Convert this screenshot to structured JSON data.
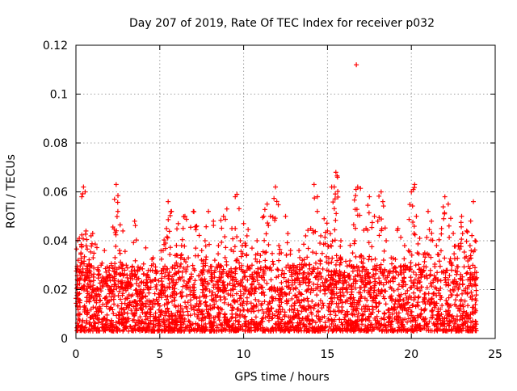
{
  "chart_data": {
    "type": "scatter",
    "title": "Day 207 of 2019, Rate Of TEC Index for receiver p032",
    "xlabel": "GPS time / hours",
    "ylabel": "ROTI / TECUs",
    "xlim": [
      0,
      25
    ],
    "ylim": [
      0,
      0.12
    ],
    "xticks": [
      0,
      5,
      10,
      15,
      20,
      25
    ],
    "yticks": [
      0,
      0.02,
      0.04,
      0.06,
      0.08,
      0.1,
      0.12
    ],
    "xtick_labels": [
      "0",
      "5",
      "10",
      "15",
      "20",
      "25"
    ],
    "ytick_labels": [
      "0",
      "0.02",
      "0.04",
      "0.06",
      "0.08",
      "0.1",
      "0.12"
    ],
    "grid": true,
    "marker": "+",
    "color": "#ff0000",
    "series": [
      {
        "name": "ROTI",
        "points": [
          [
            0.1,
            0.013
          ],
          [
            0.2,
            0.041
          ],
          [
            0.3,
            0.035
          ],
          [
            0.35,
            0.058
          ],
          [
            0.45,
            0.062
          ],
          [
            0.55,
            0.06
          ],
          [
            0.6,
            0.044
          ],
          [
            0.7,
            0.028
          ],
          [
            0.8,
            0.015
          ],
          [
            0.9,
            0.042
          ],
          [
            1.0,
            0.043
          ],
          [
            1.1,
            0.02
          ],
          [
            1.3,
            0.012
          ],
          [
            1.5,
            0.03
          ],
          [
            1.7,
            0.036
          ],
          [
            1.9,
            0.025
          ],
          [
            2.1,
            0.017
          ],
          [
            2.3,
            0.057
          ],
          [
            2.4,
            0.063
          ],
          [
            2.5,
            0.052
          ],
          [
            2.6,
            0.036
          ],
          [
            2.8,
            0.044
          ],
          [
            3.0,
            0.03
          ],
          [
            3.2,
            0.022
          ],
          [
            3.5,
            0.048
          ],
          [
            3.7,
            0.018
          ],
          [
            4.0,
            0.014
          ],
          [
            4.3,
            0.025
          ],
          [
            4.6,
            0.033
          ],
          [
            5.0,
            0.018
          ],
          [
            5.2,
            0.036
          ],
          [
            5.4,
            0.045
          ],
          [
            5.5,
            0.056
          ],
          [
            5.7,
            0.052
          ],
          [
            5.9,
            0.03
          ],
          [
            6.1,
            0.047
          ],
          [
            6.3,
            0.038
          ],
          [
            6.5,
            0.05
          ],
          [
            6.7,
            0.033
          ],
          [
            7.0,
            0.052
          ],
          [
            7.2,
            0.046
          ],
          [
            7.5,
            0.036
          ],
          [
            7.7,
            0.04
          ],
          [
            7.9,
            0.052
          ],
          [
            8.2,
            0.048
          ],
          [
            8.5,
            0.038
          ],
          [
            8.8,
            0.05
          ],
          [
            9.0,
            0.053
          ],
          [
            9.3,
            0.045
          ],
          [
            9.5,
            0.058
          ],
          [
            9.6,
            0.059
          ],
          [
            9.8,
            0.04
          ],
          [
            10.0,
            0.047
          ],
          [
            10.2,
            0.042
          ],
          [
            10.5,
            0.03
          ],
          [
            10.8,
            0.04
          ],
          [
            11.0,
            0.034
          ],
          [
            11.2,
            0.05
          ],
          [
            11.4,
            0.055
          ],
          [
            11.6,
            0.05
          ],
          [
            11.9,
            0.062
          ],
          [
            12.1,
            0.038
          ],
          [
            12.5,
            0.05
          ],
          [
            12.8,
            0.036
          ],
          [
            13.0,
            0.028
          ],
          [
            13.3,
            0.036
          ],
          [
            13.5,
            0.032
          ],
          [
            13.7,
            0.042
          ],
          [
            14.0,
            0.045
          ],
          [
            14.2,
            0.063
          ],
          [
            14.4,
            0.058
          ],
          [
            14.6,
            0.042
          ],
          [
            14.8,
            0.049
          ],
          [
            15.0,
            0.044
          ],
          [
            15.2,
            0.038
          ],
          [
            15.4,
            0.062
          ],
          [
            15.5,
            0.068
          ],
          [
            15.6,
            0.066
          ],
          [
            15.8,
            0.04
          ],
          [
            16.0,
            0.025
          ],
          [
            16.3,
            0.03
          ],
          [
            16.5,
            0.035
          ],
          [
            16.7,
            0.061
          ],
          [
            16.72,
            0.112
          ],
          [
            16.8,
            0.062
          ],
          [
            17.0,
            0.034
          ],
          [
            17.3,
            0.045
          ],
          [
            17.5,
            0.058
          ],
          [
            17.8,
            0.05
          ],
          [
            18.0,
            0.048
          ],
          [
            18.2,
            0.06
          ],
          [
            18.3,
            0.056
          ],
          [
            18.5,
            0.04
          ],
          [
            18.8,
            0.033
          ],
          [
            19.2,
            0.045
          ],
          [
            19.6,
            0.038
          ],
          [
            20.0,
            0.06
          ],
          [
            20.2,
            0.063
          ],
          [
            20.3,
            0.05
          ],
          [
            20.5,
            0.041
          ],
          [
            20.8,
            0.035
          ],
          [
            21.0,
            0.052
          ],
          [
            21.2,
            0.048
          ],
          [
            21.5,
            0.038
          ],
          [
            21.8,
            0.045
          ],
          [
            22.0,
            0.058
          ],
          [
            22.2,
            0.055
          ],
          [
            22.5,
            0.043
          ],
          [
            22.8,
            0.038
          ],
          [
            23.0,
            0.05
          ],
          [
            23.3,
            0.044
          ],
          [
            23.5,
            0.038
          ],
          [
            23.7,
            0.056
          ],
          [
            23.8,
            0.04
          ]
        ],
        "dense_band": {
          "note": "dense cloud of points spanning the full time range",
          "x_range": [
            0,
            23.9
          ],
          "y_min": 0.003,
          "y_typical_max": 0.03
        }
      }
    ]
  }
}
